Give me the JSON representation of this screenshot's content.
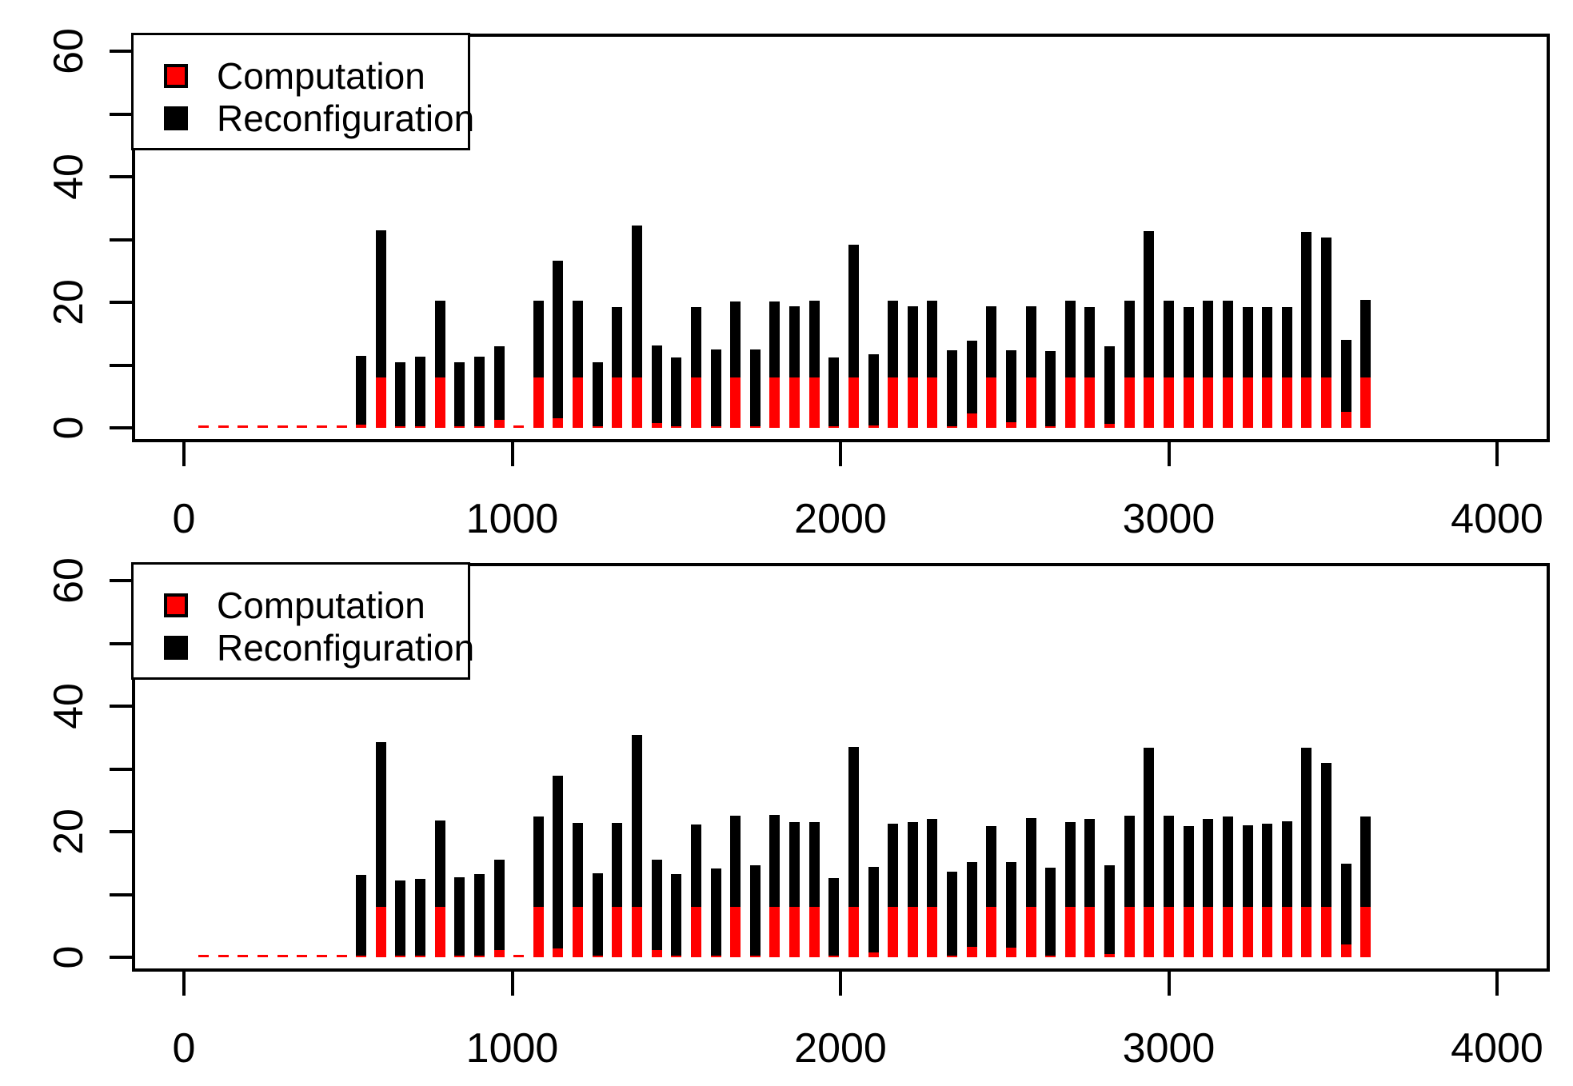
{
  "figure": {
    "background": "#ffffff"
  },
  "colors": {
    "computation": "#ff0000",
    "reconfiguration": "#000000",
    "axis": "#000000"
  },
  "legend": {
    "items": [
      {
        "label": "Computation",
        "color": "#ff0000"
      },
      {
        "label": "Reconfiguration",
        "color": "#000000"
      }
    ],
    "position": "topleft"
  },
  "chart_data": [
    {
      "type": "bar",
      "stacked": true,
      "panel": "top",
      "title": "",
      "xlabel": "",
      "ylabel": "",
      "xlim": [
        0,
        4000
      ],
      "ylim": [
        0,
        60
      ],
      "xticks": [
        0,
        1000,
        2000,
        3000,
        4000
      ],
      "yticks": [
        0,
        10,
        20,
        30,
        40,
        50,
        60
      ],
      "ytick_labels": [
        "0",
        "",
        "20",
        "",
        "40",
        "",
        "60"
      ],
      "grid": false,
      "legend_position": "topleft",
      "x": [
        60,
        120,
        180,
        240,
        300,
        360,
        420,
        480,
        540,
        600,
        660,
        720,
        780,
        840,
        900,
        960,
        1020,
        1080,
        1140,
        1200,
        1260,
        1320,
        1380,
        1440,
        1500,
        1560,
        1620,
        1680,
        1740,
        1800,
        1860,
        1920,
        1980,
        2040,
        2100,
        2160,
        2220,
        2280,
        2340,
        2400,
        2460,
        2520,
        2580,
        2640,
        2700,
        2760,
        2820,
        2880,
        2940,
        3000,
        3060,
        3120,
        3180,
        3240,
        3300,
        3360,
        3420,
        3480,
        3540,
        3600
      ],
      "series": [
        {
          "name": "Computation",
          "color": "#ff0000",
          "values": [
            0.4,
            0.4,
            0.4,
            0.4,
            0.4,
            0.4,
            0.4,
            0.4,
            0.5,
            8,
            0.3,
            0.3,
            8,
            0.3,
            0.3,
            1.3,
            0.4,
            8,
            1.5,
            8,
            0.2,
            8,
            8,
            0.8,
            0.2,
            8,
            0.3,
            8,
            0.3,
            8,
            8,
            8,
            0.2,
            8,
            0.4,
            8,
            8,
            8,
            0.2,
            2.3,
            8,
            0.9,
            8,
            0.2,
            8,
            8,
            0.6,
            8,
            8,
            8,
            8,
            8,
            8,
            8,
            8,
            8,
            8,
            8,
            2.5,
            8
          ]
        },
        {
          "name": "Reconfiguration",
          "color": "#000000",
          "values": [
            0,
            0,
            0,
            0,
            0,
            0,
            0,
            0,
            11,
            23.5,
            10.1,
            11,
            12.2,
            10.1,
            11,
            11.7,
            0,
            12.2,
            25.1,
            12.2,
            10.2,
            11.2,
            24.2,
            12.3,
            11,
            11.2,
            12.2,
            12.1,
            12.2,
            12.1,
            11.3,
            12.2,
            11,
            21.2,
            11.3,
            12.2,
            11.3,
            12.2,
            12.1,
            11.6,
            11.3,
            11.4,
            11.3,
            12,
            12.2,
            11.2,
            12.4,
            12.2,
            23.3,
            12.2,
            11.2,
            12.2,
            12.2,
            11.2,
            11.2,
            11.2,
            23.2,
            22.3,
            11.5,
            12.4
          ]
        }
      ]
    },
    {
      "type": "bar",
      "stacked": true,
      "panel": "bottom",
      "title": "",
      "xlabel": "",
      "ylabel": "",
      "xlim": [
        0,
        4000
      ],
      "ylim": [
        0,
        60
      ],
      "xticks": [
        0,
        1000,
        2000,
        3000,
        4000
      ],
      "yticks": [
        0,
        10,
        20,
        30,
        40,
        50,
        60
      ],
      "ytick_labels": [
        "0",
        "",
        "20",
        "",
        "40",
        "",
        "60"
      ],
      "grid": false,
      "legend_position": "topleft",
      "x": [
        60,
        120,
        180,
        240,
        300,
        360,
        420,
        480,
        540,
        600,
        660,
        720,
        780,
        840,
        900,
        960,
        1020,
        1080,
        1140,
        1200,
        1260,
        1320,
        1380,
        1440,
        1500,
        1560,
        1620,
        1680,
        1740,
        1800,
        1860,
        1920,
        1980,
        2040,
        2100,
        2160,
        2220,
        2280,
        2340,
        2400,
        2460,
        2520,
        2580,
        2640,
        2700,
        2760,
        2820,
        2880,
        2940,
        3000,
        3060,
        3120,
        3180,
        3240,
        3300,
        3360,
        3420,
        3480,
        3540,
        3600
      ],
      "series": [
        {
          "name": "Computation",
          "color": "#ff0000",
          "values": [
            0.4,
            0.4,
            0.4,
            0.4,
            0.4,
            0.4,
            0.4,
            0.4,
            0.3,
            8,
            0.2,
            0.3,
            8,
            0.2,
            0.3,
            1.2,
            0.4,
            8,
            1.4,
            8,
            0.2,
            8,
            8,
            1.1,
            0.2,
            8,
            0.3,
            8,
            0.3,
            8,
            8,
            8,
            0.2,
            8,
            0.8,
            8,
            8,
            8,
            0.2,
            1.7,
            8,
            1.5,
            8,
            0.2,
            8,
            8,
            0.5,
            8,
            8,
            8,
            8,
            8,
            8,
            8,
            8,
            8,
            8,
            8,
            2,
            8
          ]
        },
        {
          "name": "Reconfiguration",
          "color": "#000000",
          "values": [
            0,
            0,
            0,
            0,
            0,
            0,
            0,
            0,
            12.8,
            26.3,
            12,
            12.2,
            13.8,
            12.5,
            12.9,
            14.4,
            0,
            14.4,
            27.5,
            13.4,
            13.2,
            13.4,
            27.4,
            14.5,
            13,
            13.1,
            13.8,
            14.6,
            14.4,
            14.7,
            13.5,
            13.5,
            12.4,
            25.5,
            13.6,
            13.3,
            13.5,
            14,
            13.4,
            13.5,
            12.9,
            13.7,
            14.2,
            14.1,
            13.5,
            14.1,
            14.2,
            14.6,
            25.4,
            14.5,
            12.9,
            14.1,
            14.4,
            13,
            13.3,
            13.7,
            25.4,
            23,
            12.9,
            14.4
          ]
        }
      ]
    }
  ]
}
